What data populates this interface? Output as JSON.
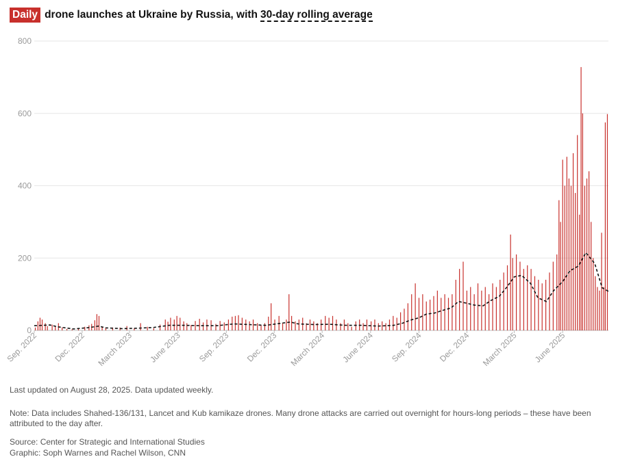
{
  "chart_data": {
    "type": "bar",
    "title_badge": "Daily",
    "title_mid": "drone launches at Ukraine by Russia, with",
    "title_avg": "30-day rolling average",
    "ylim": [
      0,
      800
    ],
    "yticks": [
      0,
      200,
      400,
      600,
      800
    ],
    "x_range": [
      "2022-09-01",
      "2025-08-27"
    ],
    "xticks": [
      {
        "date": "2022-09-01",
        "label": "Sep. 2022"
      },
      {
        "date": "2022-12-01",
        "label": "Dec. 2022"
      },
      {
        "date": "2023-03-01",
        "label": "March 2023"
      },
      {
        "date": "2023-06-01",
        "label": "June 2023"
      },
      {
        "date": "2023-09-01",
        "label": "Sep. 2023"
      },
      {
        "date": "2023-12-01",
        "label": "Dec. 2023"
      },
      {
        "date": "2024-03-01",
        "label": "March 2024"
      },
      {
        "date": "2024-06-01",
        "label": "June 2024"
      },
      {
        "date": "2024-09-01",
        "label": "Sep. 2024"
      },
      {
        "date": "2024-12-01",
        "label": "Dec. 2024"
      },
      {
        "date": "2025-03-01",
        "label": "March 2025"
      },
      {
        "date": "2025-06-01",
        "label": "June 2025"
      }
    ],
    "grid": true,
    "colors": {
      "bars": "#c8302c",
      "average": "#111111",
      "grid": "#e6e6e6",
      "badge": "#c8302c"
    },
    "series": [
      {
        "name": "Daily",
        "style": "bar",
        "points": [
          [
            "2022-09-03",
            8
          ],
          [
            "2022-09-08",
            25
          ],
          [
            "2022-09-12",
            35
          ],
          [
            "2022-09-16",
            30
          ],
          [
            "2022-09-22",
            20
          ],
          [
            "2022-09-26",
            12
          ],
          [
            "2022-10-05",
            16
          ],
          [
            "2022-10-11",
            12
          ],
          [
            "2022-10-17",
            20
          ],
          [
            "2022-10-24",
            8
          ],
          [
            "2022-11-02",
            4
          ],
          [
            "2022-11-12",
            3
          ],
          [
            "2022-11-24",
            6
          ],
          [
            "2022-12-06",
            10
          ],
          [
            "2022-12-14",
            14
          ],
          [
            "2022-12-19",
            18
          ],
          [
            "2022-12-25",
            28
          ],
          [
            "2022-12-29",
            45
          ],
          [
            "2023-01-02",
            40
          ],
          [
            "2023-01-08",
            10
          ],
          [
            "2023-01-15",
            6
          ],
          [
            "2023-01-28",
            8
          ],
          [
            "2023-02-11",
            8
          ],
          [
            "2023-02-24",
            12
          ],
          [
            "2023-03-10",
            6
          ],
          [
            "2023-03-22",
            20
          ],
          [
            "2023-04-04",
            10
          ],
          [
            "2023-04-16",
            6
          ],
          [
            "2023-04-28",
            16
          ],
          [
            "2023-05-08",
            30
          ],
          [
            "2023-05-13",
            24
          ],
          [
            "2023-05-18",
            35
          ],
          [
            "2023-05-25",
            30
          ],
          [
            "2023-05-30",
            40
          ],
          [
            "2023-06-05",
            35
          ],
          [
            "2023-06-12",
            25
          ],
          [
            "2023-06-18",
            20
          ],
          [
            "2023-06-26",
            15
          ],
          [
            "2023-07-04",
            26
          ],
          [
            "2023-07-12",
            32
          ],
          [
            "2023-07-19",
            22
          ],
          [
            "2023-07-26",
            30
          ],
          [
            "2023-08-03",
            28
          ],
          [
            "2023-08-12",
            18
          ],
          [
            "2023-08-20",
            26
          ],
          [
            "2023-08-28",
            22
          ],
          [
            "2023-09-05",
            30
          ],
          [
            "2023-09-12",
            38
          ],
          [
            "2023-09-18",
            40
          ],
          [
            "2023-09-24",
            42
          ],
          [
            "2023-10-01",
            35
          ],
          [
            "2023-10-08",
            30
          ],
          [
            "2023-10-15",
            25
          ],
          [
            "2023-10-22",
            30
          ],
          [
            "2023-10-30",
            20
          ],
          [
            "2023-11-06",
            15
          ],
          [
            "2023-11-13",
            20
          ],
          [
            "2023-11-20",
            38
          ],
          [
            "2023-11-25",
            75
          ],
          [
            "2023-12-02",
            30
          ],
          [
            "2023-12-10",
            40
          ],
          [
            "2023-12-17",
            20
          ],
          [
            "2023-12-24",
            30
          ],
          [
            "2023-12-29",
            100
          ],
          [
            "2024-01-03",
            40
          ],
          [
            "2024-01-10",
            25
          ],
          [
            "2024-01-17",
            30
          ],
          [
            "2024-01-24",
            35
          ],
          [
            "2024-01-31",
            20
          ],
          [
            "2024-02-07",
            30
          ],
          [
            "2024-02-14",
            25
          ],
          [
            "2024-02-21",
            20
          ],
          [
            "2024-02-28",
            30
          ],
          [
            "2024-03-07",
            40
          ],
          [
            "2024-03-14",
            35
          ],
          [
            "2024-03-21",
            40
          ],
          [
            "2024-03-28",
            30
          ],
          [
            "2024-04-05",
            20
          ],
          [
            "2024-04-12",
            30
          ],
          [
            "2024-04-19",
            20
          ],
          [
            "2024-04-26",
            10
          ],
          [
            "2024-05-04",
            25
          ],
          [
            "2024-05-11",
            30
          ],
          [
            "2024-05-18",
            20
          ],
          [
            "2024-05-25",
            30
          ],
          [
            "2024-06-02",
            25
          ],
          [
            "2024-06-09",
            30
          ],
          [
            "2024-06-16",
            20
          ],
          [
            "2024-06-23",
            25
          ],
          [
            "2024-06-30",
            20
          ],
          [
            "2024-07-07",
            30
          ],
          [
            "2024-07-14",
            40
          ],
          [
            "2024-07-21",
            35
          ],
          [
            "2024-07-28",
            50
          ],
          [
            "2024-08-04",
            60
          ],
          [
            "2024-08-11",
            75
          ],
          [
            "2024-08-18",
            100
          ],
          [
            "2024-08-25",
            130
          ],
          [
            "2024-09-01",
            90
          ],
          [
            "2024-09-08",
            100
          ],
          [
            "2024-09-15",
            80
          ],
          [
            "2024-09-22",
            85
          ],
          [
            "2024-09-29",
            95
          ],
          [
            "2024-10-06",
            110
          ],
          [
            "2024-10-13",
            90
          ],
          [
            "2024-10-20",
            100
          ],
          [
            "2024-10-27",
            90
          ],
          [
            "2024-11-03",
            100
          ],
          [
            "2024-11-10",
            140
          ],
          [
            "2024-11-17",
            170
          ],
          [
            "2024-11-24",
            190
          ],
          [
            "2024-12-01",
            110
          ],
          [
            "2024-12-08",
            120
          ],
          [
            "2024-12-15",
            100
          ],
          [
            "2024-12-22",
            130
          ],
          [
            "2024-12-29",
            110
          ],
          [
            "2025-01-05",
            120
          ],
          [
            "2025-01-12",
            100
          ],
          [
            "2025-01-19",
            130
          ],
          [
            "2025-01-26",
            120
          ],
          [
            "2025-02-02",
            140
          ],
          [
            "2025-02-09",
            160
          ],
          [
            "2025-02-16",
            180
          ],
          [
            "2025-02-22",
            265
          ],
          [
            "2025-02-26",
            200
          ],
          [
            "2025-03-05",
            210
          ],
          [
            "2025-03-12",
            190
          ],
          [
            "2025-03-19",
            170
          ],
          [
            "2025-03-26",
            180
          ],
          [
            "2025-04-02",
            170
          ],
          [
            "2025-04-09",
            150
          ],
          [
            "2025-04-16",
            140
          ],
          [
            "2025-04-23",
            130
          ],
          [
            "2025-04-30",
            140
          ],
          [
            "2025-05-07",
            160
          ],
          [
            "2025-05-14",
            190
          ],
          [
            "2025-05-21",
            210
          ],
          [
            "2025-05-25",
            360
          ],
          [
            "2025-05-28",
            300
          ],
          [
            "2025-06-01",
            472
          ],
          [
            "2025-06-05",
            400
          ],
          [
            "2025-06-09",
            480
          ],
          [
            "2025-06-13",
            420
          ],
          [
            "2025-06-17",
            400
          ],
          [
            "2025-06-21",
            490
          ],
          [
            "2025-06-25",
            380
          ],
          [
            "2025-06-29",
            540
          ],
          [
            "2025-07-03",
            320
          ],
          [
            "2025-07-06",
            728
          ],
          [
            "2025-07-09",
            600
          ],
          [
            "2025-07-13",
            400
          ],
          [
            "2025-07-17",
            420
          ],
          [
            "2025-07-21",
            440
          ],
          [
            "2025-07-25",
            300
          ],
          [
            "2025-07-29",
            200
          ],
          [
            "2025-08-02",
            150
          ],
          [
            "2025-08-06",
            120
          ],
          [
            "2025-08-10",
            110
          ],
          [
            "2025-08-14",
            270
          ],
          [
            "2025-08-18",
            120
          ],
          [
            "2025-08-21",
            575
          ],
          [
            "2025-08-25",
            598
          ]
        ]
      },
      {
        "name": "30-day rolling average",
        "style": "dashed-line",
        "points": [
          [
            "2022-09-01",
            13
          ],
          [
            "2022-10-01",
            15
          ],
          [
            "2022-10-15",
            10
          ],
          [
            "2022-11-15",
            4
          ],
          [
            "2022-12-15",
            8
          ],
          [
            "2023-01-01",
            12
          ],
          [
            "2023-01-15",
            7
          ],
          [
            "2023-02-15",
            5
          ],
          [
            "2023-03-15",
            6
          ],
          [
            "2023-04-15",
            8
          ],
          [
            "2023-05-15",
            14
          ],
          [
            "2023-06-15",
            14
          ],
          [
            "2023-07-15",
            13
          ],
          [
            "2023-08-15",
            13
          ],
          [
            "2023-09-15",
            18
          ],
          [
            "2023-10-15",
            16
          ],
          [
            "2023-11-15",
            14
          ],
          [
            "2023-12-15",
            20
          ],
          [
            "2024-01-01",
            23
          ],
          [
            "2024-01-15",
            18
          ],
          [
            "2024-02-15",
            16
          ],
          [
            "2024-03-15",
            17
          ],
          [
            "2024-04-15",
            14
          ],
          [
            "2024-05-15",
            14
          ],
          [
            "2024-06-15",
            12
          ],
          [
            "2024-07-15",
            14
          ],
          [
            "2024-08-01",
            20
          ],
          [
            "2024-08-15",
            28
          ],
          [
            "2024-09-01",
            35
          ],
          [
            "2024-09-15",
            45
          ],
          [
            "2024-10-01",
            48
          ],
          [
            "2024-10-15",
            55
          ],
          [
            "2024-11-01",
            62
          ],
          [
            "2024-11-15",
            80
          ],
          [
            "2024-12-01",
            75
          ],
          [
            "2024-12-15",
            70
          ],
          [
            "2025-01-01",
            68
          ],
          [
            "2025-01-15",
            82
          ],
          [
            "2025-02-01",
            95
          ],
          [
            "2025-02-15",
            120
          ],
          [
            "2025-03-01",
            148
          ],
          [
            "2025-03-15",
            152
          ],
          [
            "2025-04-01",
            130
          ],
          [
            "2025-04-15",
            90
          ],
          [
            "2025-05-01",
            80
          ],
          [
            "2025-05-15",
            110
          ],
          [
            "2025-06-01",
            135
          ],
          [
            "2025-06-15",
            165
          ],
          [
            "2025-07-01",
            178
          ],
          [
            "2025-07-15",
            215
          ],
          [
            "2025-08-01",
            185
          ],
          [
            "2025-08-15",
            118
          ],
          [
            "2025-08-27",
            108
          ]
        ]
      }
    ]
  },
  "footer": {
    "updated": "Last updated on August 28, 2025. Data updated weekly.",
    "note": "Note: Data includes Shahed-136/131, Lancet and Kub kamikaze drones. Many drone attacks are carried out overnight for hours-long periods – these have been attributed to the day after.",
    "source": "Source: Center for Strategic and International Studies",
    "graphic": "Graphic: Soph Warnes and Rachel Wilson, CNN"
  }
}
